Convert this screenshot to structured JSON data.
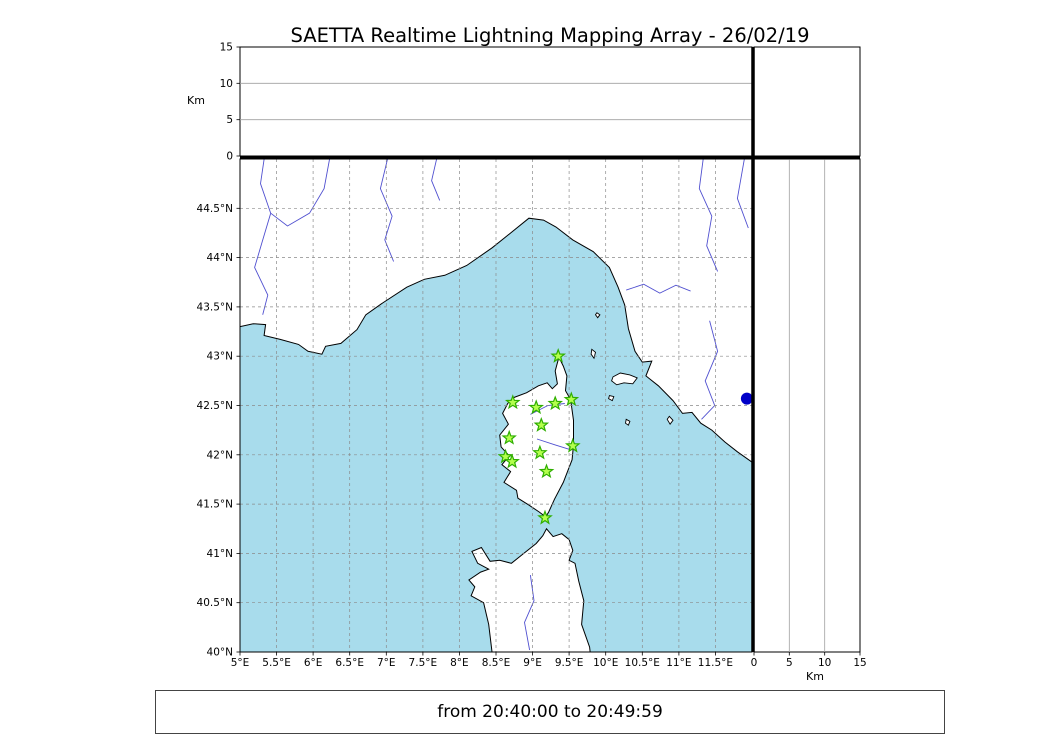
{
  "title": "SAETTA Realtime Lightning Mapping Array - 26/02/19",
  "caption": "from 20:40:00 to 20:49:59",
  "colors": {
    "sea": "#a8dcec",
    "land": "#ffffff",
    "coastline": "#000000",
    "grid": "#8a8a8a",
    "panel_grid": "#a0a0a0",
    "river": "#5050d0",
    "station_fill": "#b4ff4d",
    "station_edge": "#2fae00",
    "source": "#0000c8"
  },
  "chart_data": {
    "type": "scatter",
    "title": "SAETTA Realtime Lightning Mapping Array - 26/02/19",
    "subtitle": "from 20:40:00 to 20:49:59",
    "time_window": {
      "from": "20:40:00",
      "to": "20:49:59"
    },
    "map_panel": {
      "lon_range": [
        5,
        12
      ],
      "lat_range": [
        40,
        45
      ],
      "lon_ticks": [
        5,
        5.5,
        6,
        6.5,
        7,
        7.5,
        8,
        8.5,
        9,
        9.5,
        10,
        10.5,
        11,
        11.5
      ],
      "lon_tick_labels": [
        "5°E",
        "5.5°E",
        "6°E",
        "6.5°E",
        "7°E",
        "7.5°E",
        "8°E",
        "8.5°E",
        "9°E",
        "9.5°E",
        "10°E",
        "10.5°E",
        "11°E",
        "11.5°E"
      ],
      "lat_ticks": [
        44.5,
        44,
        43.5,
        43,
        42.5,
        42,
        41.5,
        41,
        40.5,
        40
      ],
      "lat_tick_labels": [
        "44.5°N",
        "44°N",
        "43.5°N",
        "43°N",
        "42.5°N",
        "42°N",
        "41.5°N",
        "41°N",
        "40.5°N",
        "40°N"
      ],
      "grid": "dashed every 0.5 degree"
    },
    "altitude_panels": {
      "unit": "Km",
      "range_km": [
        0,
        15
      ],
      "ticks_km": [
        0,
        5,
        10,
        15
      ],
      "tick_labels": [
        "0",
        "5",
        "10",
        "15"
      ],
      "gridlines_km": [
        5,
        10
      ]
    },
    "stations_lonlat": [
      [
        9.35,
        43.0
      ],
      [
        8.73,
        42.53
      ],
      [
        9.05,
        42.48
      ],
      [
        9.31,
        42.52
      ],
      [
        9.53,
        42.56
      ],
      [
        9.12,
        42.3
      ],
      [
        8.68,
        42.17
      ],
      [
        9.55,
        42.09
      ],
      [
        8.63,
        41.98
      ],
      [
        8.72,
        41.93
      ],
      [
        9.1,
        42.02
      ],
      [
        9.19,
        41.83
      ],
      [
        9.17,
        41.36
      ]
    ],
    "sources_lonlat": [
      [
        11.93,
        42.57
      ]
    ]
  },
  "geo": {
    "mainland": [
      [
        5.0,
        43.3
      ],
      [
        5.18,
        43.33
      ],
      [
        5.35,
        43.32
      ],
      [
        5.33,
        43.21
      ],
      [
        5.55,
        43.17
      ],
      [
        5.8,
        43.12
      ],
      [
        5.93,
        43.05
      ],
      [
        6.12,
        43.02
      ],
      [
        6.17,
        43.1
      ],
      [
        6.38,
        43.13
      ],
      [
        6.6,
        43.27
      ],
      [
        6.72,
        43.42
      ],
      [
        6.95,
        43.54
      ],
      [
        7.28,
        43.7
      ],
      [
        7.52,
        43.78
      ],
      [
        7.8,
        43.82
      ],
      [
        8.1,
        43.92
      ],
      [
        8.45,
        44.1
      ],
      [
        8.65,
        44.22
      ],
      [
        8.95,
        44.4
      ],
      [
        9.15,
        44.38
      ],
      [
        9.32,
        44.31
      ],
      [
        9.55,
        44.18
      ],
      [
        9.83,
        44.06
      ],
      [
        10.05,
        43.9
      ],
      [
        10.17,
        43.7
      ],
      [
        10.26,
        43.52
      ],
      [
        10.31,
        43.28
      ],
      [
        10.4,
        43.05
      ],
      [
        10.5,
        42.94
      ],
      [
        10.63,
        42.95
      ],
      [
        10.55,
        42.8
      ],
      [
        10.72,
        42.7
      ],
      [
        10.92,
        42.55
      ],
      [
        11.05,
        42.42
      ],
      [
        11.18,
        42.43
      ],
      [
        11.3,
        42.32
      ],
      [
        11.45,
        42.25
      ],
      [
        11.63,
        42.13
      ],
      [
        11.8,
        42.03
      ],
      [
        12.05,
        41.9
      ]
    ],
    "corsica": [
      [
        9.36,
        42.99
      ],
      [
        9.42,
        42.9
      ],
      [
        9.47,
        42.8
      ],
      [
        9.45,
        42.65
      ],
      [
        9.52,
        42.56
      ],
      [
        9.56,
        42.35
      ],
      [
        9.56,
        42.1
      ],
      [
        9.54,
        41.95
      ],
      [
        9.42,
        41.72
      ],
      [
        9.3,
        41.55
      ],
      [
        9.22,
        41.42
      ],
      [
        9.18,
        41.37
      ],
      [
        9.09,
        41.42
      ],
      [
        8.95,
        41.49
      ],
      [
        8.8,
        41.56
      ],
      [
        8.78,
        41.64
      ],
      [
        8.61,
        41.72
      ],
      [
        8.7,
        41.83
      ],
      [
        8.58,
        41.9
      ],
      [
        8.68,
        41.99
      ],
      [
        8.57,
        42.08
      ],
      [
        8.55,
        42.2
      ],
      [
        8.67,
        42.31
      ],
      [
        8.59,
        42.42
      ],
      [
        8.66,
        42.52
      ],
      [
        8.74,
        42.58
      ],
      [
        8.92,
        42.63
      ],
      [
        9.08,
        42.7
      ],
      [
        9.2,
        42.73
      ],
      [
        9.27,
        42.67
      ],
      [
        9.34,
        42.72
      ],
      [
        9.31,
        42.85
      ]
    ],
    "sardinia": [
      [
        8.47,
        39.85
      ],
      [
        8.4,
        40.28
      ],
      [
        8.33,
        40.5
      ],
      [
        8.16,
        40.57
      ],
      [
        8.21,
        40.66
      ],
      [
        8.13,
        40.73
      ],
      [
        8.29,
        40.81
      ],
      [
        8.4,
        40.84
      ],
      [
        8.25,
        40.9
      ],
      [
        8.17,
        41.02
      ],
      [
        8.3,
        41.06
      ],
      [
        8.42,
        40.92
      ],
      [
        8.55,
        40.93
      ],
      [
        8.71,
        40.9
      ],
      [
        8.88,
        41.0
      ],
      [
        9.05,
        41.1
      ],
      [
        9.14,
        41.18
      ],
      [
        9.19,
        41.25
      ],
      [
        9.28,
        41.17
      ],
      [
        9.4,
        41.2
      ],
      [
        9.5,
        41.14
      ],
      [
        9.55,
        41.03
      ],
      [
        9.5,
        40.93
      ],
      [
        9.58,
        40.9
      ],
      [
        9.63,
        40.72
      ],
      [
        9.7,
        40.52
      ],
      [
        9.67,
        40.28
      ],
      [
        9.78,
        40.05
      ],
      [
        9.81,
        39.85
      ]
    ],
    "islands": [
      [
        [
          10.1,
          42.79
        ],
        [
          10.2,
          42.83
        ],
        [
          10.33,
          42.81
        ],
        [
          10.43,
          42.78
        ],
        [
          10.37,
          42.72
        ],
        [
          10.25,
          42.73
        ],
        [
          10.15,
          42.71
        ],
        [
          10.08,
          42.75
        ]
      ],
      [
        [
          9.81,
          43.07
        ],
        [
          9.86,
          43.04
        ],
        [
          9.84,
          42.98
        ],
        [
          9.8,
          43.02
        ]
      ],
      [
        [
          10.05,
          42.6
        ],
        [
          10.11,
          42.59
        ],
        [
          10.09,
          42.55
        ],
        [
          10.04,
          42.57
        ]
      ],
      [
        [
          10.28,
          42.36
        ],
        [
          10.33,
          42.34
        ],
        [
          10.31,
          42.3
        ],
        [
          10.27,
          42.32
        ]
      ],
      [
        [
          10.87,
          42.39
        ],
        [
          10.92,
          42.35
        ],
        [
          10.88,
          42.31
        ],
        [
          10.84,
          42.36
        ]
      ],
      [
        [
          9.88,
          43.44
        ],
        [
          9.92,
          43.42
        ],
        [
          9.89,
          43.39
        ],
        [
          9.86,
          43.42
        ]
      ]
    ],
    "rivers": [
      [
        [
          5.35,
          45.1
        ],
        [
          5.28,
          44.75
        ],
        [
          5.42,
          44.45
        ],
        [
          5.3,
          44.15
        ],
        [
          5.2,
          43.9
        ],
        [
          5.38,
          43.62
        ],
        [
          5.31,
          43.42
        ]
      ],
      [
        [
          6.25,
          45.1
        ],
        [
          6.15,
          44.7
        ],
        [
          5.95,
          44.45
        ],
        [
          5.65,
          44.32
        ],
        [
          5.42,
          44.45
        ]
      ],
      [
        [
          7.05,
          45.1
        ],
        [
          6.92,
          44.7
        ],
        [
          7.08,
          44.42
        ],
        [
          6.98,
          44.18
        ],
        [
          7.1,
          43.96
        ]
      ],
      [
        [
          7.72,
          45.1
        ],
        [
          7.62,
          44.78
        ],
        [
          7.73,
          44.58
        ]
      ],
      [
        [
          10.28,
          43.67
        ],
        [
          10.52,
          43.73
        ],
        [
          10.74,
          43.64
        ],
        [
          10.96,
          43.72
        ],
        [
          11.16,
          43.66
        ]
      ],
      [
        [
          11.35,
          45.1
        ],
        [
          11.28,
          44.7
        ],
        [
          11.45,
          44.42
        ],
        [
          11.38,
          44.12
        ],
        [
          11.53,
          43.86
        ]
      ],
      [
        [
          11.92,
          45.1
        ],
        [
          11.8,
          44.6
        ],
        [
          11.95,
          44.3
        ]
      ],
      [
        [
          11.42,
          43.36
        ],
        [
          11.53,
          43.05
        ],
        [
          11.36,
          42.75
        ],
        [
          11.49,
          42.5
        ],
        [
          11.31,
          42.36
        ]
      ],
      [
        [
          8.97,
          42.41
        ],
        [
          9.21,
          42.5
        ],
        [
          9.44,
          42.52
        ]
      ],
      [
        [
          9.06,
          42.16
        ],
        [
          9.31,
          42.1
        ],
        [
          9.53,
          42.05
        ]
      ],
      [
        [
          8.96,
          40.02
        ],
        [
          8.89,
          40.3
        ],
        [
          9.02,
          40.52
        ],
        [
          8.97,
          40.78
        ]
      ]
    ]
  }
}
